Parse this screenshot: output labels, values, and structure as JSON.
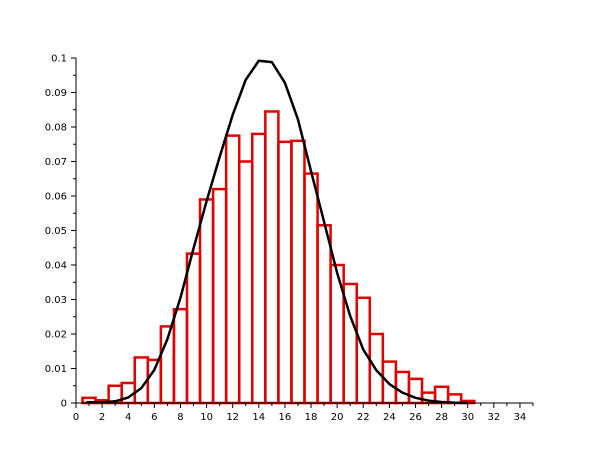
{
  "chart_data": {
    "type": "bar",
    "title": "",
    "xlabel": "",
    "ylabel": "",
    "xlim": [
      0,
      35
    ],
    "ylim": [
      0,
      0.1
    ],
    "grid": false,
    "x_ticks": [
      "0",
      "2",
      "4",
      "6",
      "8",
      "10",
      "12",
      "14",
      "16",
      "18",
      "20",
      "22",
      "24",
      "26",
      "28",
      "30",
      "32",
      "34"
    ],
    "y_ticks": [
      "0",
      "0.01",
      "0.02",
      "0.03",
      "0.04",
      "0.05",
      "0.06",
      "0.07",
      "0.08",
      "0.09",
      "0.1"
    ],
    "colors": {
      "bars": "#e00000",
      "curve": "#000000",
      "axes": "#000000",
      "background": "#ffffff"
    },
    "series": [
      {
        "type": "histogram",
        "bin_left_edges": [
          0.5,
          1.5,
          2.5,
          3.5,
          4.5,
          5.5,
          6.5,
          7.5,
          8.5,
          9.5,
          10.5,
          11.5,
          12.5,
          13.5,
          14.5,
          15.5,
          16.5,
          17.5,
          18.5,
          19.5,
          20.5,
          21.5,
          22.5,
          23.5,
          24.5,
          25.5,
          26.5,
          27.5,
          28.5,
          29.5
        ],
        "bin_width": 1,
        "values": [
          0.0015,
          0.0008,
          0.005,
          0.0058,
          0.0132,
          0.0125,
          0.0222,
          0.0272,
          0.0433,
          0.059,
          0.062,
          0.0775,
          0.07,
          0.078,
          0.0845,
          0.0757,
          0.076,
          0.0665,
          0.0515,
          0.04,
          0.0345,
          0.0305,
          0.02,
          0.012,
          0.009,
          0.007,
          0.003,
          0.0047,
          0.0025,
          0.0006
        ]
      },
      {
        "type": "line",
        "x": [
          0.8,
          2,
          3,
          4,
          5,
          6,
          7,
          8,
          9,
          10,
          11,
          12,
          13,
          14,
          15,
          16,
          17,
          18,
          19,
          20,
          21,
          22,
          23,
          24,
          25,
          26,
          27,
          28,
          29,
          30
        ],
        "y": [
          0.0002,
          0.0002,
          0.0005,
          0.0016,
          0.0043,
          0.0096,
          0.0185,
          0.0305,
          0.0448,
          0.0585,
          0.0713,
          0.0835,
          0.0937,
          0.0992,
          0.0988,
          0.0928,
          0.0822,
          0.0672,
          0.0525,
          0.0377,
          0.0252,
          0.0155,
          0.0095,
          0.0055,
          0.003,
          0.0015,
          0.0007,
          0.0003,
          0.0001,
          0.0
        ]
      }
    ]
  }
}
